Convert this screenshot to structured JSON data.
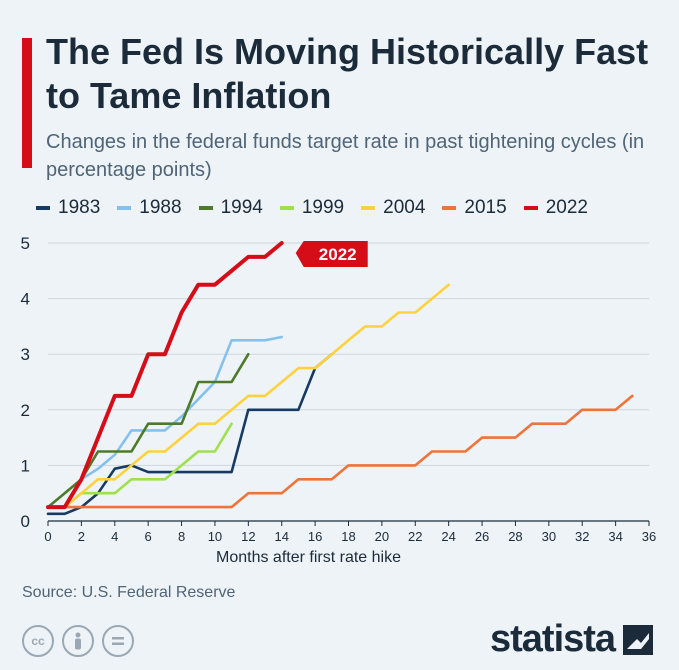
{
  "title": "The Fed Is Moving Historically Fast to Tame Inflation",
  "subtitle": "Changes in the federal funds target rate in past tightening cycles (in percentage points)",
  "source": "Source: U.S. Federal Reserve",
  "brand": "statista",
  "colors": {
    "accent": "#d40d19",
    "background": "#eef3f7",
    "text": "#1b2b3a"
  },
  "icons": [
    "cc-icon",
    "attribution-icon",
    "no-derivatives-icon",
    "statista-logo-icon"
  ],
  "chart_data": {
    "type": "line",
    "title": "The Fed Is Moving Historically Fast to Tame Inflation",
    "xlabel": "Months after first rate hike",
    "ylabel": "",
    "xlim": [
      0,
      36
    ],
    "ylim": [
      0,
      5
    ],
    "x_ticks": [
      "0",
      "2",
      "4",
      "6",
      "8",
      "10",
      "12",
      "14",
      "16",
      "18",
      "20",
      "22",
      "24",
      "26",
      "28",
      "30",
      "32",
      "34",
      "36"
    ],
    "y_ticks": [
      "0",
      "1",
      "2",
      "3",
      "4",
      "5"
    ],
    "grid": "horizontal",
    "legend_position": "top",
    "annotation": "2022",
    "series": [
      {
        "name": "1983",
        "color": "#173a64",
        "values": [
          [
            0,
            0.13
          ],
          [
            1,
            0.13
          ],
          [
            2,
            0.25
          ],
          [
            3,
            0.5
          ],
          [
            4,
            0.94
          ],
          [
            5,
            1.0
          ],
          [
            6,
            0.88
          ],
          [
            7,
            0.88
          ],
          [
            8,
            0.88
          ],
          [
            9,
            0.88
          ],
          [
            10,
            0.88
          ],
          [
            11,
            0.88
          ],
          [
            12,
            2.0
          ],
          [
            13,
            2.0
          ],
          [
            14,
            2.0
          ],
          [
            15,
            2.0
          ],
          [
            16,
            2.75
          ],
          [
            17,
            3.0
          ]
        ]
      },
      {
        "name": "1988",
        "color": "#86c1ee",
        "values": [
          [
            0,
            0.25
          ],
          [
            1,
            0.25
          ],
          [
            2,
            0.75
          ],
          [
            3,
            0.94
          ],
          [
            4,
            1.19
          ],
          [
            5,
            1.63
          ],
          [
            6,
            1.63
          ],
          [
            7,
            1.63
          ],
          [
            8,
            1.88
          ],
          [
            9,
            2.19
          ],
          [
            10,
            2.5
          ],
          [
            11,
            3.25
          ],
          [
            12,
            3.25
          ],
          [
            13,
            3.25
          ],
          [
            14,
            3.31
          ]
        ]
      },
      {
        "name": "1994",
        "color": "#4d7a2a",
        "values": [
          [
            0,
            0.25
          ],
          [
            1,
            0.5
          ],
          [
            2,
            0.75
          ],
          [
            3,
            1.25
          ],
          [
            4,
            1.25
          ],
          [
            5,
            1.25
          ],
          [
            6,
            1.75
          ],
          [
            7,
            1.75
          ],
          [
            8,
            1.75
          ],
          [
            9,
            2.5
          ],
          [
            10,
            2.5
          ],
          [
            11,
            2.5
          ],
          [
            12,
            3.0
          ]
        ]
      },
      {
        "name": "1999",
        "color": "#9fe04d",
        "values": [
          [
            0,
            0.25
          ],
          [
            1,
            0.25
          ],
          [
            2,
            0.5
          ],
          [
            3,
            0.5
          ],
          [
            4,
            0.5
          ],
          [
            5,
            0.75
          ],
          [
            6,
            0.75
          ],
          [
            7,
            0.75
          ],
          [
            8,
            1.0
          ],
          [
            9,
            1.25
          ],
          [
            10,
            1.25
          ],
          [
            11,
            1.75
          ]
        ]
      },
      {
        "name": "2004",
        "color": "#ffd23d",
        "values": [
          [
            0,
            0.25
          ],
          [
            1,
            0.25
          ],
          [
            2,
            0.5
          ],
          [
            3,
            0.75
          ],
          [
            4,
            0.75
          ],
          [
            5,
            1.0
          ],
          [
            6,
            1.25
          ],
          [
            7,
            1.25
          ],
          [
            8,
            1.5
          ],
          [
            9,
            1.75
          ],
          [
            10,
            1.75
          ],
          [
            11,
            2.0
          ],
          [
            12,
            2.25
          ],
          [
            13,
            2.25
          ],
          [
            14,
            2.5
          ],
          [
            15,
            2.75
          ],
          [
            16,
            2.75
          ],
          [
            17,
            3.0
          ],
          [
            18,
            3.25
          ],
          [
            19,
            3.5
          ],
          [
            20,
            3.5
          ],
          [
            21,
            3.75
          ],
          [
            22,
            3.75
          ],
          [
            23,
            4.0
          ],
          [
            24,
            4.25
          ]
        ]
      },
      {
        "name": "2015",
        "color": "#f0733a",
        "values": [
          [
            0,
            0.25
          ],
          [
            11,
            0.25
          ],
          [
            12,
            0.5
          ],
          [
            14,
            0.5
          ],
          [
            15,
            0.75
          ],
          [
            17,
            0.75
          ],
          [
            18,
            1.0
          ],
          [
            22,
            1.0
          ],
          [
            23,
            1.25
          ],
          [
            25,
            1.25
          ],
          [
            26,
            1.5
          ],
          [
            28,
            1.5
          ],
          [
            29,
            1.75
          ],
          [
            31,
            1.75
          ],
          [
            32,
            2.0
          ],
          [
            34,
            2.0
          ],
          [
            35,
            2.25
          ]
        ]
      },
      {
        "name": "2022",
        "color": "#d40d19",
        "values": [
          [
            0,
            0.25
          ],
          [
            1,
            0.25
          ],
          [
            2,
            0.75
          ],
          [
            3,
            1.5
          ],
          [
            4,
            2.25
          ],
          [
            5,
            2.25
          ],
          [
            6,
            3.0
          ],
          [
            7,
            3.0
          ],
          [
            8,
            3.75
          ],
          [
            9,
            4.25
          ],
          [
            10,
            4.25
          ],
          [
            11,
            4.5
          ],
          [
            12,
            4.75
          ],
          [
            13,
            4.75
          ],
          [
            14,
            5.0
          ]
        ]
      }
    ]
  }
}
